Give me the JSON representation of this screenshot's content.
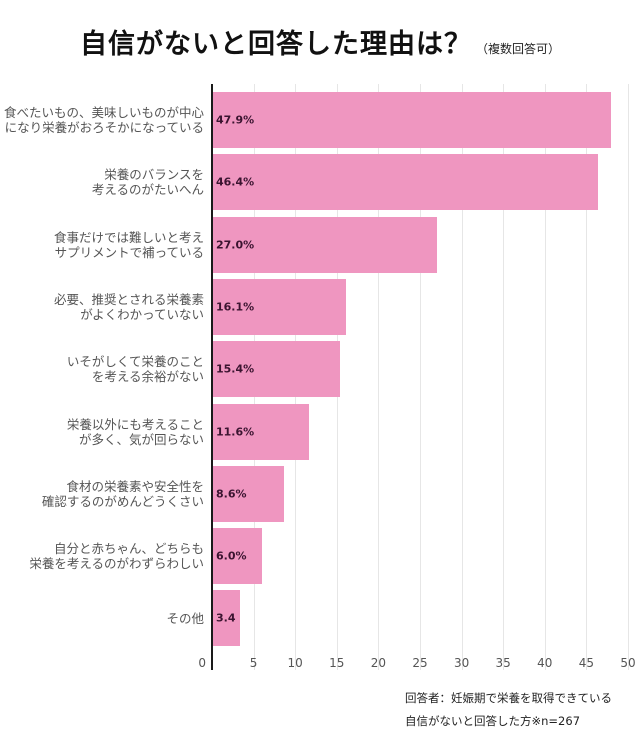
{
  "header": {
    "title": "自信がないと回答した理由は？",
    "subtitle": "（複数回答可）"
  },
  "footnote": {
    "line1": "回答者：妊娠期で栄養を取得できている",
    "line2": "自信がないと回答した方※n=267"
  },
  "colors": {
    "bar": "#ef96c0",
    "label": "#3b1430",
    "axis": "#1a1a1a",
    "grid": "#e6e6e6"
  },
  "chart_data": {
    "type": "bar",
    "orientation": "horizontal",
    "title": "自信がないと回答した理由は？（複数回答可）",
    "xlabel": "",
    "ylabel": "",
    "xlim": [
      0,
      50
    ],
    "xticks": [
      0,
      5,
      10,
      15,
      20,
      25,
      30,
      35,
      40,
      45,
      50
    ],
    "grid": true,
    "legend": null,
    "categories": [
      "食べたいもの、美味しいものが中心になり栄養がおろそかになっている",
      "栄養のバランスを考えるのがたいへん",
      "食事だけでは難しいと考えサプリメントで補っている",
      "必要、推奨とされる栄養素がよくわかっていない",
      "いそがしくて栄養のことを考える余裕がない",
      "栄養以外にも考えることが多く、気が回らない",
      "食材の栄養素や安全性を確認するのがめんどうくさい",
      "自分と赤ちゃん、どちらも栄養を考えるのがわずらわしい",
      "その他"
    ],
    "values": [
      47.9,
      46.4,
      27.0,
      16.1,
      15.4,
      11.6,
      8.6,
      6.0,
      3.4
    ],
    "value_labels": [
      "47.9%",
      "46.4%",
      "27.0%",
      "16.1%",
      "15.4%",
      "11.6%",
      "8.6%",
      "6.0%",
      "3.4"
    ],
    "note": "回答者：妊娠期で栄養を取得できている自信がないと回答した方※n=267"
  },
  "bars": [
    {
      "line1": "食べたいもの、美味しいものが中心",
      "line2": "になり栄養がおろそかになっている",
      "label": "47.9%",
      "value": 47.9
    },
    {
      "line1": "栄養のバランスを",
      "line2": "考えるのがたいへん",
      "label": "46.4%",
      "value": 46.4
    },
    {
      "line1": "食事だけでは難しいと考え",
      "line2": "サプリメントで補っている",
      "label": "27.0%",
      "value": 27.0
    },
    {
      "line1": "必要、推奨とされる栄養素",
      "line2": "がよくわかっていない",
      "label": "16.1%",
      "value": 16.1
    },
    {
      "line1": "いそがしくて栄養のこと",
      "line2": "を考える余裕がない",
      "label": "15.4%",
      "value": 15.4
    },
    {
      "line1": "栄養以外にも考えること",
      "line2": "が多く、気が回らない",
      "label": "11.6%",
      "value": 11.6
    },
    {
      "line1": "食材の栄養素や安全性を",
      "line2": "確認するのがめんどうくさい",
      "label": "8.6%",
      "value": 8.6
    },
    {
      "line1": "自分と赤ちゃん、どちらも",
      "line2": "栄養を考えるのがわずらわしい",
      "label": "6.0%",
      "value": 6.0
    },
    {
      "line1": "その他",
      "line2": "",
      "label": "3.4",
      "value": 3.4
    }
  ],
  "ticks": [
    "0",
    "5",
    "10",
    "15",
    "20",
    "25",
    "30",
    "35",
    "40",
    "45",
    "50"
  ]
}
